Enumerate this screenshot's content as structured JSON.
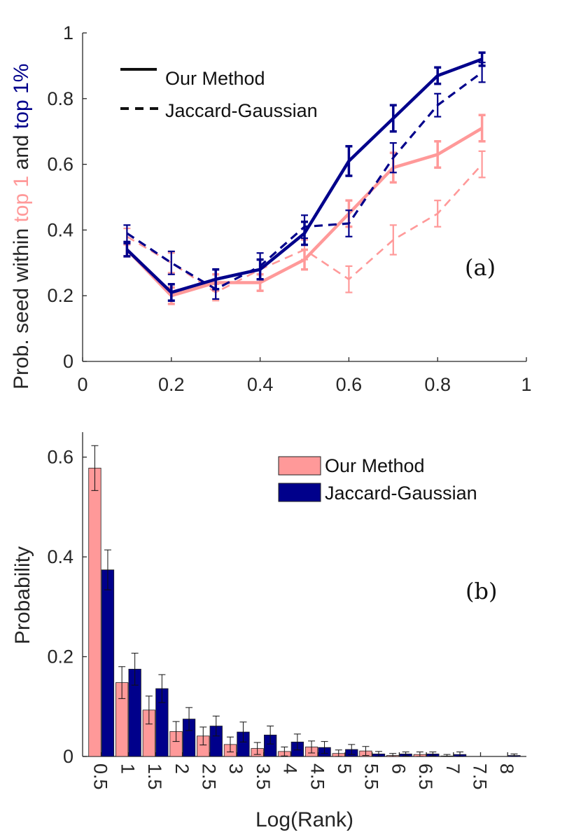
{
  "colors": {
    "pink": "#FF9999",
    "navy": "#00008B",
    "axis": "#262626"
  },
  "chart_data": [
    {
      "id": "a",
      "type": "line",
      "panel_label": "(a)",
      "ylabel_parts": [
        "Prob. seed within ",
        "top 1",
        " and ",
        "top 1%"
      ],
      "xlim": [
        0,
        1
      ],
      "ylim": [
        0,
        1
      ],
      "xticks": [
        0,
        0.2,
        0.4,
        0.6,
        0.8,
        1
      ],
      "xtick_labels": [
        "0",
        "0.2",
        "0.4",
        "0.6",
        "0.8",
        "1"
      ],
      "yticks": [
        0,
        0.2,
        0.4,
        0.6,
        0.8,
        1
      ],
      "ytick_labels": [
        "0",
        "0.2",
        "0.4",
        "0.6",
        "0.8",
        "1"
      ],
      "x": [
        0.1,
        0.2,
        0.3,
        0.4,
        0.5,
        0.6,
        0.7,
        0.8,
        0.9
      ],
      "legend": [
        {
          "label": "Our Method",
          "style": "solid"
        },
        {
          "label": "Jaccard-Gaussian",
          "style": "dashed"
        }
      ],
      "series": [
        {
          "name": "Our Method - top 1",
          "color": "pink",
          "style": "solid",
          "values": [
            0.34,
            0.2,
            0.24,
            0.24,
            0.31,
            0.45,
            0.59,
            0.63,
            0.71
          ],
          "errors": [
            0.02,
            0.025,
            0.025,
            0.025,
            0.03,
            0.04,
            0.045,
            0.04,
            0.04
          ]
        },
        {
          "name": "Jaccard-Gaussian - top 1",
          "color": "pink",
          "style": "dashed",
          "values": [
            0.38,
            0.3,
            0.21,
            0.28,
            0.34,
            0.25,
            0.37,
            0.45,
            0.6
          ],
          "errors": [
            0.025,
            0.03,
            0.025,
            0.03,
            0.03,
            0.04,
            0.045,
            0.04,
            0.04
          ]
        },
        {
          "name": "Our Method - top 1%",
          "color": "navy",
          "style": "solid",
          "values": [
            0.34,
            0.21,
            0.25,
            0.28,
            0.39,
            0.61,
            0.74,
            0.87,
            0.92
          ],
          "errors": [
            0.02,
            0.025,
            0.03,
            0.03,
            0.035,
            0.045,
            0.04,
            0.025,
            0.02
          ]
        },
        {
          "name": "Jaccard-Gaussian - top 1%",
          "color": "navy",
          "style": "dashed",
          "values": [
            0.39,
            0.3,
            0.22,
            0.29,
            0.41,
            0.42,
            0.62,
            0.78,
            0.88
          ],
          "errors": [
            0.025,
            0.035,
            0.03,
            0.04,
            0.035,
            0.04,
            0.045,
            0.035,
            0.03
          ]
        }
      ]
    },
    {
      "id": "b",
      "type": "bar",
      "panel_label": "(b)",
      "xlabel": "Log(Rank)",
      "ylabel": "Probability",
      "ylim": [
        0,
        0.65
      ],
      "yticks": [
        0,
        0.2,
        0.4,
        0.6
      ],
      "ytick_labels": [
        "0",
        "0.2",
        "0.4",
        "0.6"
      ],
      "categories": [
        "0.5",
        "1",
        "1.5",
        "2",
        "2.5",
        "3",
        "3.5",
        "4",
        "4.5",
        "5",
        "5.5",
        "6",
        "6.5",
        "7",
        "7.5",
        "8"
      ],
      "series": [
        {
          "name": "Our Method",
          "color": "pink",
          "values": [
            0.578,
            0.148,
            0.093,
            0.05,
            0.041,
            0.024,
            0.016,
            0.01,
            0.019,
            0.006,
            0.011,
            0.002,
            0.004,
            0.001,
            0.0,
            0.0
          ],
          "errors": [
            0.045,
            0.032,
            0.028,
            0.02,
            0.018,
            0.015,
            0.012,
            0.009,
            0.012,
            0.007,
            0.009,
            0.004,
            0.005,
            0.003,
            0.0,
            0.0
          ]
        },
        {
          "name": "Jaccard-Gaussian",
          "color": "navy",
          "values": [
            0.374,
            0.175,
            0.136,
            0.075,
            0.061,
            0.049,
            0.043,
            0.029,
            0.018,
            0.014,
            0.005,
            0.005,
            0.005,
            0.004,
            0.0,
            0.002
          ],
          "errors": [
            0.04,
            0.032,
            0.028,
            0.023,
            0.02,
            0.02,
            0.018,
            0.016,
            0.012,
            0.01,
            0.005,
            0.004,
            0.004,
            0.005,
            0.0,
            0.003
          ]
        }
      ],
      "legend": [
        {
          "label": "Our Method",
          "color": "pink"
        },
        {
          "label": "Jaccard-Gaussian",
          "color": "navy"
        }
      ]
    }
  ]
}
